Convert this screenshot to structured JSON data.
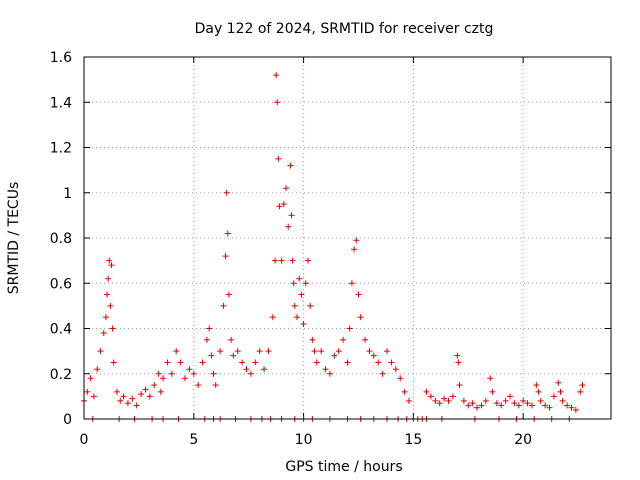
{
  "chart_data": {
    "type": "scatter",
    "title": "Day 122 of 2024, SRMTID for receiver cztg",
    "xlabel": "GPS time / hours",
    "ylabel": "SRMTID / TECUs",
    "xlim": [
      0,
      24
    ],
    "ylim": [
      0,
      1.6
    ],
    "xticks": [
      0,
      5,
      10,
      15,
      20
    ],
    "xtick_labels": [
      "0",
      "5",
      "10",
      "15",
      "20"
    ],
    "yticks": [
      0,
      0.2,
      0.4,
      0.6,
      0.8,
      1.0,
      1.2,
      1.4,
      1.6
    ],
    "ytick_labels": [
      "0",
      "0.2",
      "0.4",
      "0.6",
      "0.8",
      "1",
      "1.2",
      "1.4",
      "1.6"
    ],
    "grid": true,
    "marker": "plus",
    "marker_color": "#e00000",
    "series": [
      {
        "name": "SRMTID",
        "x": [
          0.0,
          0.15,
          0.3,
          0.45,
          0.6,
          0.75,
          0.9,
          1.0,
          1.05,
          1.1,
          1.15,
          1.2,
          1.25,
          1.3,
          1.35,
          1.5,
          1.65,
          1.8,
          2.0,
          2.2,
          2.4,
          2.6,
          2.8,
          3.0,
          3.2,
          3.4,
          3.5,
          3.6,
          3.8,
          4.0,
          4.2,
          4.4,
          4.6,
          4.8,
          5.0,
          5.2,
          5.4,
          5.6,
          5.7,
          5.8,
          5.9,
          6.0,
          6.2,
          6.35,
          6.45,
          6.5,
          6.55,
          6.6,
          6.7,
          6.8,
          7.0,
          7.2,
          7.4,
          7.6,
          7.8,
          8.0,
          8.2,
          8.4,
          8.6,
          8.7,
          8.75,
          8.8,
          8.85,
          8.9,
          9.0,
          9.1,
          9.2,
          9.3,
          9.4,
          9.45,
          9.5,
          9.55,
          9.6,
          9.7,
          9.8,
          9.9,
          10.0,
          10.1,
          10.2,
          10.3,
          10.4,
          10.5,
          10.6,
          10.8,
          11.0,
          11.2,
          11.4,
          11.6,
          11.8,
          12.0,
          12.1,
          12.2,
          12.3,
          12.4,
          12.5,
          12.6,
          12.8,
          13.0,
          13.2,
          13.4,
          13.6,
          13.8,
          14.0,
          14.2,
          14.4,
          14.6,
          14.8,
          15.6,
          15.8,
          16.0,
          16.2,
          16.4,
          16.6,
          16.8,
          17.0,
          17.05,
          17.1,
          17.3,
          17.5,
          17.7,
          17.9,
          18.1,
          18.3,
          18.5,
          18.6,
          18.8,
          19.0,
          19.2,
          19.4,
          19.6,
          19.8,
          20.0,
          20.2,
          20.4,
          20.6,
          20.7,
          20.8,
          21.0,
          21.2,
          21.4,
          21.6,
          21.7,
          21.8,
          22.0,
          22.2,
          22.4,
          22.6,
          22.7
        ],
        "y": [
          0.08,
          0.12,
          0.18,
          0.1,
          0.22,
          0.3,
          0.38,
          0.45,
          0.55,
          0.62,
          0.7,
          0.5,
          0.68,
          0.4,
          0.25,
          0.12,
          0.08,
          0.1,
          0.07,
          0.09,
          0.06,
          0.11,
          0.13,
          0.1,
          0.15,
          0.2,
          0.12,
          0.18,
          0.25,
          0.2,
          0.3,
          0.25,
          0.18,
          0.22,
          0.2,
          0.15,
          0.25,
          0.35,
          0.4,
          0.28,
          0.2,
          0.15,
          0.3,
          0.5,
          0.72,
          1.0,
          0.82,
          0.55,
          0.35,
          0.28,
          0.3,
          0.25,
          0.22,
          0.2,
          0.25,
          0.3,
          0.22,
          0.3,
          0.45,
          0.7,
          1.52,
          1.4,
          1.15,
          0.94,
          0.7,
          0.95,
          1.02,
          0.85,
          1.12,
          0.9,
          0.7,
          0.6,
          0.5,
          0.45,
          0.62,
          0.55,
          0.42,
          0.6,
          0.7,
          0.5,
          0.35,
          0.3,
          0.25,
          0.3,
          0.22,
          0.2,
          0.28,
          0.3,
          0.35,
          0.25,
          0.4,
          0.6,
          0.75,
          0.79,
          0.55,
          0.45,
          0.35,
          0.3,
          0.28,
          0.25,
          0.2,
          0.3,
          0.25,
          0.22,
          0.18,
          0.12,
          0.08,
          0.12,
          0.1,
          0.08,
          0.07,
          0.09,
          0.08,
          0.1,
          0.28,
          0.25,
          0.15,
          0.08,
          0.06,
          0.07,
          0.05,
          0.06,
          0.08,
          0.18,
          0.12,
          0.07,
          0.06,
          0.08,
          0.1,
          0.07,
          0.06,
          0.08,
          0.07,
          0.06,
          0.15,
          0.12,
          0.08,
          0.06,
          0.05,
          0.1,
          0.16,
          0.12,
          0.08,
          0.06,
          0.05,
          0.04,
          0.12,
          0.15
        ]
      }
    ],
    "zero_points_x": [
      0.4,
      1.6,
      2.3,
      3.1,
      3.6,
      4.3,
      5.5,
      5.9,
      6.2,
      6.9,
      7.6,
      8.1,
      8.5,
      9.0,
      9.6,
      10.0,
      10.4,
      11.2,
      12.0,
      12.6,
      13.2,
      13.8,
      14.3,
      14.7,
      15.0,
      15.2,
      15.4,
      15.6,
      16.3,
      17.8,
      18.9,
      19.7,
      20.5,
      21.3,
      22.1
    ]
  }
}
